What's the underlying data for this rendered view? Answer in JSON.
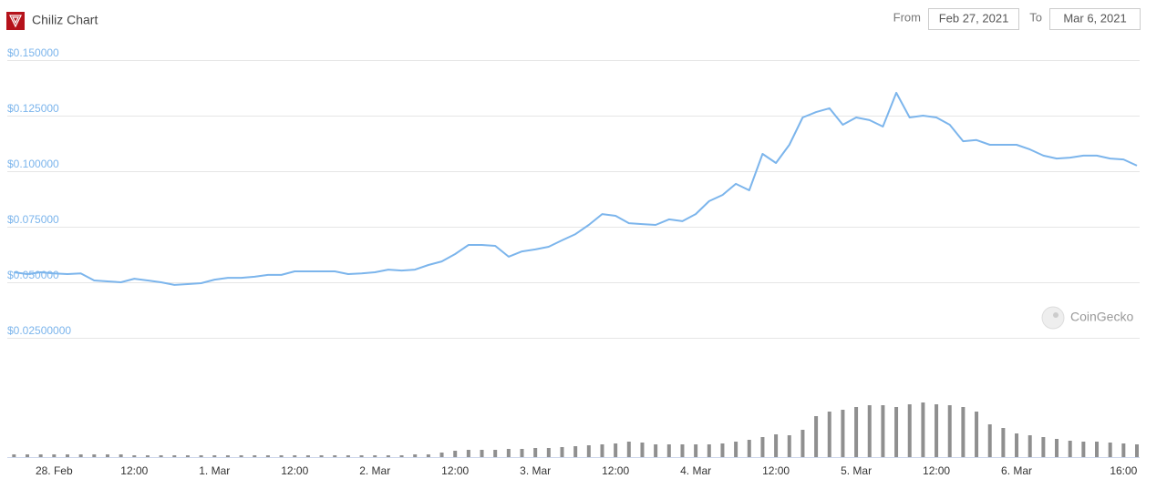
{
  "header": {
    "from_label": "From",
    "from_date": "Feb 27, 2021",
    "to_label": "To",
    "to_date": "Mar 6, 2021"
  },
  "watermark": "CoinGecko",
  "chart_data": {
    "type": "line",
    "title": "Chiliz Chart",
    "color": "#7cb5ec",
    "grid": true,
    "xlim": [
      "2021-02-27T17:00",
      "2021-03-06T18:00"
    ],
    "ylim": [
      0.025,
      0.15
    ],
    "yticks": [
      {
        "value": 0.15,
        "label": "$0.150000"
      },
      {
        "value": 0.125,
        "label": "$0.125000"
      },
      {
        "value": 0.1,
        "label": "$0.100000"
      },
      {
        "value": 0.075,
        "label": "$0.075000"
      },
      {
        "value": 0.05,
        "label": "$0.050000"
      },
      {
        "value": 0.025,
        "label": "$0.02500000"
      }
    ],
    "xticks": [
      {
        "value": "2021-02-28T00:00",
        "label": "28. Feb"
      },
      {
        "value": "2021-02-28T12:00",
        "label": "12:00"
      },
      {
        "value": "2021-03-01T00:00",
        "label": "1. Mar"
      },
      {
        "value": "2021-03-01T12:00",
        "label": "12:00"
      },
      {
        "value": "2021-03-02T00:00",
        "label": "2. Mar"
      },
      {
        "value": "2021-03-02T12:00",
        "label": "12:00"
      },
      {
        "value": "2021-03-03T00:00",
        "label": "3. Mar"
      },
      {
        "value": "2021-03-03T12:00",
        "label": "12:00"
      },
      {
        "value": "2021-03-04T00:00",
        "label": "4. Mar"
      },
      {
        "value": "2021-03-04T12:00",
        "label": "12:00"
      },
      {
        "value": "2021-03-05T00:00",
        "label": "5. Mar"
      },
      {
        "value": "2021-03-05T12:00",
        "label": "12:00"
      },
      {
        "value": "2021-03-06T00:00",
        "label": "6. Mar"
      },
      {
        "value": "2021-03-06T16:00",
        "label": "16:00"
      }
    ],
    "x": [
      "2021-02-27T18:00",
      "2021-02-27T20:00",
      "2021-02-27T22:00",
      "2021-02-28T00:00",
      "2021-02-28T02:00",
      "2021-02-28T04:00",
      "2021-02-28T06:00",
      "2021-02-28T08:00",
      "2021-02-28T10:00",
      "2021-02-28T12:00",
      "2021-02-28T14:00",
      "2021-02-28T16:00",
      "2021-02-28T18:00",
      "2021-02-28T20:00",
      "2021-02-28T22:00",
      "2021-03-01T00:00",
      "2021-03-01T02:00",
      "2021-03-01T04:00",
      "2021-03-01T06:00",
      "2021-03-01T08:00",
      "2021-03-01T10:00",
      "2021-03-01T12:00",
      "2021-03-01T14:00",
      "2021-03-01T16:00",
      "2021-03-01T18:00",
      "2021-03-01T20:00",
      "2021-03-01T22:00",
      "2021-03-02T00:00",
      "2021-03-02T02:00",
      "2021-03-02T04:00",
      "2021-03-02T06:00",
      "2021-03-02T08:00",
      "2021-03-02T10:00",
      "2021-03-02T12:00",
      "2021-03-02T14:00",
      "2021-03-02T16:00",
      "2021-03-02T18:00",
      "2021-03-02T20:00",
      "2021-03-02T22:00",
      "2021-03-03T00:00",
      "2021-03-03T02:00",
      "2021-03-03T04:00",
      "2021-03-03T06:00",
      "2021-03-03T08:00",
      "2021-03-03T10:00",
      "2021-03-03T12:00",
      "2021-03-03T14:00",
      "2021-03-03T16:00",
      "2021-03-03T18:00",
      "2021-03-03T20:00",
      "2021-03-03T22:00",
      "2021-03-04T00:00",
      "2021-03-04T02:00",
      "2021-03-04T04:00",
      "2021-03-04T06:00",
      "2021-03-04T08:00",
      "2021-03-04T10:00",
      "2021-03-04T12:00",
      "2021-03-04T14:00",
      "2021-03-04T16:00",
      "2021-03-04T18:00",
      "2021-03-04T20:00",
      "2021-03-04T22:00",
      "2021-03-05T00:00",
      "2021-03-05T02:00",
      "2021-03-05T04:00",
      "2021-03-05T06:00",
      "2021-03-05T08:00",
      "2021-03-05T10:00",
      "2021-03-05T12:00",
      "2021-03-05T14:00",
      "2021-03-05T16:00",
      "2021-03-05T18:00",
      "2021-03-05T20:00",
      "2021-03-05T22:00",
      "2021-03-06T00:00",
      "2021-03-06T02:00",
      "2021-03-06T04:00",
      "2021-03-06T06:00",
      "2021-03-06T08:00",
      "2021-03-06T10:00",
      "2021-03-06T12:00",
      "2021-03-06T14:00",
      "2021-03-06T16:00",
      "2021-03-06T18:00"
    ],
    "values": [
      0.0545,
      0.0537,
      0.0545,
      0.054,
      0.0537,
      0.054,
      0.0508,
      0.0504,
      0.05,
      0.0516,
      0.0508,
      0.05,
      0.0488,
      0.0492,
      0.0496,
      0.0512,
      0.052,
      0.052,
      0.0525,
      0.0533,
      0.0533,
      0.0549,
      0.0549,
      0.0549,
      0.0549,
      0.0537,
      0.054,
      0.0545,
      0.0557,
      0.0553,
      0.0557,
      0.0578,
      0.0594,
      0.0627,
      0.0668,
      0.0668,
      0.0664,
      0.0615,
      0.0639,
      0.0648,
      0.066,
      0.0689,
      0.0717,
      0.0758,
      0.0807,
      0.0799,
      0.0766,
      0.0762,
      0.0758,
      0.0783,
      0.0775,
      0.0807,
      0.0865,
      0.0893,
      0.0943,
      0.0914,
      0.1078,
      0.1037,
      0.1119,
      0.1242,
      0.1266,
      0.1283,
      0.1209,
      0.1242,
      0.123,
      0.1201,
      0.1353,
      0.1242,
      0.125,
      0.1242,
      0.1209,
      0.1135,
      0.114,
      0.1119,
      0.1119,
      0.1119,
      0.1098,
      0.107,
      0.1057,
      0.1061,
      0.107,
      0.107,
      0.1057,
      0.1053,
      0.1025
    ],
    "volume": {
      "color": "#8f8f8f",
      "values": [
        3,
        3,
        3,
        3,
        3,
        3,
        3,
        3,
        3,
        2,
        2,
        2,
        2,
        2,
        2,
        2,
        2,
        2,
        2,
        2,
        2,
        2,
        2,
        2,
        2,
        2,
        2,
        2,
        2,
        2,
        3,
        3,
        5,
        7,
        8,
        8,
        8,
        9,
        9,
        10,
        10,
        11,
        12,
        13,
        14,
        15,
        17,
        16,
        14,
        14,
        14,
        14,
        14,
        15,
        17,
        19,
        22,
        25,
        24,
        30,
        45,
        50,
        52,
        55,
        57,
        57,
        55,
        58,
        60,
        58,
        57,
        55,
        50,
        36,
        32,
        26,
        24,
        22,
        20,
        18,
        17,
        17,
        16,
        15,
        14
      ]
    }
  }
}
